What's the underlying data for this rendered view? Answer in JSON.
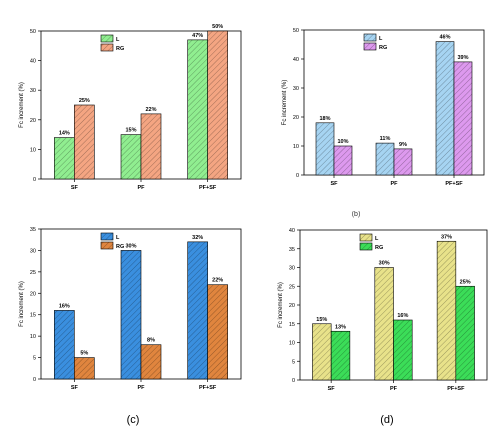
{
  "panel_labels": {
    "c": "(c)",
    "d": "(d)",
    "b": "(b)"
  },
  "chart_data": [
    {
      "id": "a",
      "type": "bar",
      "categories": [
        "SF",
        "PF",
        "PF+SF"
      ],
      "series": [
        {
          "name": "L",
          "values": [
            14,
            15,
            47
          ],
          "labels": [
            "14%",
            "15%",
            "47%"
          ],
          "color": "#90EE90"
        },
        {
          "name": "RG",
          "values": [
            25,
            22,
            50
          ],
          "labels": [
            "25%",
            "22%",
            "50%"
          ],
          "color": "#F4A582"
        }
      ],
      "xlabel": "",
      "ylabel": "Fc increment (%)",
      "ylim": [
        0,
        50
      ],
      "yticks": [
        0,
        10,
        20,
        30,
        40,
        50
      ],
      "legend": "top-left"
    },
    {
      "id": "b",
      "type": "bar",
      "categories": [
        "SF",
        "PF",
        "PF+SF"
      ],
      "series": [
        {
          "name": "L",
          "values": [
            18,
            11,
            46
          ],
          "labels": [
            "18%",
            "11%",
            "46%"
          ],
          "color": "#A6D4F2"
        },
        {
          "name": "RG",
          "values": [
            10,
            9,
            39
          ],
          "labels": [
            "10%",
            "9%",
            "39%"
          ],
          "color": "#DD99EE"
        }
      ],
      "xlabel": "",
      "ylabel": "Fc increment (%)",
      "ylim": [
        0,
        50
      ],
      "yticks": [
        0,
        10,
        20,
        30,
        40,
        50
      ],
      "legend": "top-left"
    },
    {
      "id": "c",
      "type": "bar",
      "categories": [
        "SF",
        "PF",
        "PF+SF"
      ],
      "series": [
        {
          "name": "L",
          "values": [
            16,
            30,
            32
          ],
          "labels": [
            "16%",
            "30%",
            "32%"
          ],
          "color": "#3A8FDF"
        },
        {
          "name": "RG",
          "values": [
            5,
            8,
            22
          ],
          "labels": [
            "5%",
            "8%",
            "22%"
          ],
          "color": "#E0853E"
        }
      ],
      "xlabel": "",
      "ylabel": "Fc increment (%)",
      "ylim": [
        0,
        35
      ],
      "yticks": [
        0,
        5,
        10,
        15,
        20,
        25,
        30,
        35
      ],
      "legend": "top-left"
    },
    {
      "id": "d",
      "type": "bar",
      "categories": [
        "SF",
        "PF",
        "PF+SF"
      ],
      "series": [
        {
          "name": "L",
          "values": [
            15,
            30,
            37
          ],
          "labels": [
            "15%",
            "30%",
            "37%"
          ],
          "color": "#E8E28A"
        },
        {
          "name": "RG",
          "values": [
            13,
            16,
            25
          ],
          "labels": [
            "13%",
            "16%",
            "25%"
          ],
          "color": "#3BDD58"
        }
      ],
      "xlabel": "",
      "ylabel": "Fc increment (%)",
      "ylim": [
        0,
        40
      ],
      "yticks": [
        0,
        5,
        10,
        15,
        20,
        25,
        30,
        35,
        40
      ],
      "legend": "top-left"
    }
  ]
}
